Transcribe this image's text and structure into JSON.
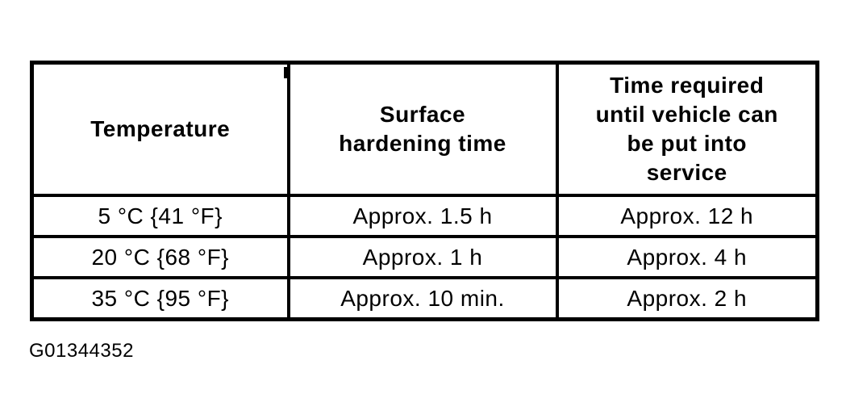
{
  "table": {
    "columns": [
      "Temperature",
      "Surface\nhardening time",
      "Time required\nuntil vehicle can\nbe put into\nservice"
    ],
    "rows": [
      [
        "5 °C {41 °F}",
        "Approx. 1.5 h",
        "Approx. 12 h"
      ],
      [
        "20 °C {68 °F}",
        "Approx. 1 h",
        "Approx. 4 h"
      ],
      [
        "35 °C {95 °F}",
        "Approx. 10 min.",
        "Approx. 2 h"
      ]
    ]
  },
  "figure": {
    "code": "G01344352"
  },
  "colors": {
    "background": "#ffffff",
    "border": "#000000",
    "text": "#000000"
  }
}
